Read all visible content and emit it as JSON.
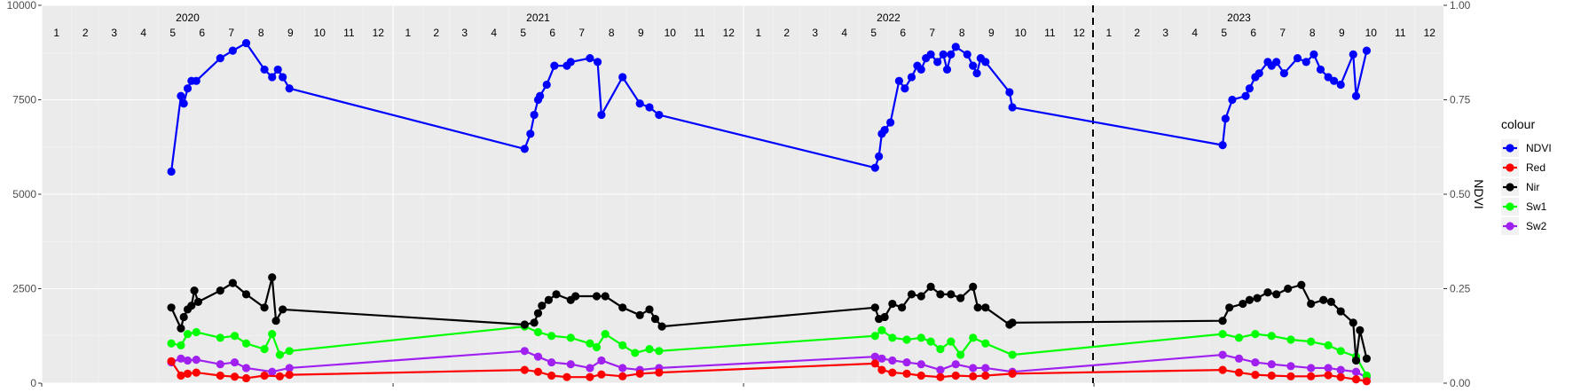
{
  "chart_data": {
    "type": "line",
    "x_axis": {
      "type": "date",
      "range": [
        "2020-01-01",
        "2023-12-31"
      ],
      "year_labels": [
        {
          "date": "2020-06-01",
          "label": "2020"
        },
        {
          "date": "2021-06-01",
          "label": "2021"
        },
        {
          "date": "2022-06-01",
          "label": "2022"
        },
        {
          "date": "2023-06-01",
          "label": "2023"
        }
      ],
      "month_labels": [
        "1",
        "2",
        "3",
        "4",
        "5",
        "6",
        "7",
        "8",
        "9",
        "10",
        "11",
        "12"
      ]
    },
    "y_left": {
      "range": [
        0,
        10000
      ],
      "ticks": [
        0,
        2500,
        5000,
        7500,
        10000
      ],
      "tick_labels": [
        "0",
        "2500",
        "5000",
        "7500",
        "10000"
      ]
    },
    "y_right": {
      "label": "NDVI",
      "range": [
        0,
        1
      ],
      "ticks": [
        0,
        0.25,
        0.5,
        0.75,
        1
      ],
      "tick_labels": [
        "0.00",
        "0.25",
        "0.50",
        "0.75",
        "1.00"
      ]
    },
    "vline": {
      "date": "2022-12-31",
      "style": "dashed",
      "color": "#000000"
    },
    "grid": true,
    "legend": {
      "title": "colour",
      "position": "right"
    },
    "series": [
      {
        "name": "NDVI",
        "color": "#0000ff",
        "axis": "right",
        "points": [
          [
            "2020-05-15",
            0.56
          ],
          [
            "2020-05-25",
            0.76
          ],
          [
            "2020-05-28",
            0.74
          ],
          [
            "2020-06-01",
            0.78
          ],
          [
            "2020-06-05",
            0.8
          ],
          [
            "2020-06-10",
            0.8
          ],
          [
            "2020-07-05",
            0.86
          ],
          [
            "2020-07-18",
            0.88
          ],
          [
            "2020-08-01",
            0.9
          ],
          [
            "2020-08-20",
            0.83
          ],
          [
            "2020-08-28",
            0.81
          ],
          [
            "2020-09-03",
            0.83
          ],
          [
            "2020-09-08",
            0.81
          ],
          [
            "2020-09-15",
            0.78
          ],
          [
            "2021-05-18",
            0.62
          ],
          [
            "2021-05-24",
            0.66
          ],
          [
            "2021-05-28",
            0.71
          ],
          [
            "2021-06-01",
            0.75
          ],
          [
            "2021-06-03",
            0.76
          ],
          [
            "2021-06-10",
            0.79
          ],
          [
            "2021-06-18",
            0.84
          ],
          [
            "2021-07-01",
            0.84
          ],
          [
            "2021-07-05",
            0.85
          ],
          [
            "2021-07-25",
            0.86
          ],
          [
            "2021-08-02",
            0.85
          ],
          [
            "2021-08-06",
            0.71
          ],
          [
            "2021-08-28",
            0.81
          ],
          [
            "2021-09-15",
            0.74
          ],
          [
            "2021-09-25",
            0.73
          ],
          [
            "2021-10-05",
            0.71
          ],
          [
            "2022-05-18",
            0.57
          ],
          [
            "2022-05-22",
            0.6
          ],
          [
            "2022-05-25",
            0.66
          ],
          [
            "2022-05-28",
            0.67
          ],
          [
            "2022-06-03",
            0.69
          ],
          [
            "2022-06-12",
            0.8
          ],
          [
            "2022-06-18",
            0.78
          ],
          [
            "2022-06-25",
            0.81
          ],
          [
            "2022-07-01",
            0.84
          ],
          [
            "2022-07-05",
            0.83
          ],
          [
            "2022-07-10",
            0.86
          ],
          [
            "2022-07-15",
            0.87
          ],
          [
            "2022-07-22",
            0.85
          ],
          [
            "2022-07-28",
            0.87
          ],
          [
            "2022-08-01",
            0.83
          ],
          [
            "2022-08-05",
            0.87
          ],
          [
            "2022-08-10",
            0.89
          ],
          [
            "2022-08-22",
            0.87
          ],
          [
            "2022-08-28",
            0.84
          ],
          [
            "2022-09-01",
            0.82
          ],
          [
            "2022-09-05",
            0.86
          ],
          [
            "2022-09-10",
            0.85
          ],
          [
            "2022-10-05",
            0.77
          ],
          [
            "2022-10-08",
            0.73
          ],
          [
            "2023-05-15",
            0.63
          ],
          [
            "2023-05-18",
            0.7
          ],
          [
            "2023-05-25",
            0.75
          ],
          [
            "2023-06-08",
            0.76
          ],
          [
            "2023-06-12",
            0.78
          ],
          [
            "2023-06-18",
            0.81
          ],
          [
            "2023-06-22",
            0.82
          ],
          [
            "2023-07-01",
            0.85
          ],
          [
            "2023-07-05",
            0.84
          ],
          [
            "2023-07-10",
            0.85
          ],
          [
            "2023-07-18",
            0.82
          ],
          [
            "2023-08-01",
            0.86
          ],
          [
            "2023-08-10",
            0.85
          ],
          [
            "2023-08-18",
            0.87
          ],
          [
            "2023-08-25",
            0.83
          ],
          [
            "2023-09-02",
            0.81
          ],
          [
            "2023-09-08",
            0.8
          ],
          [
            "2023-09-15",
            0.79
          ],
          [
            "2023-09-28",
            0.87
          ],
          [
            "2023-10-01",
            0.76
          ],
          [
            "2023-10-12",
            0.88
          ]
        ]
      },
      {
        "name": "Red",
        "color": "#ff0000",
        "axis": "left",
        "points": [
          [
            "2020-05-15",
            580
          ],
          [
            "2020-05-25",
            200
          ],
          [
            "2020-06-01",
            250
          ],
          [
            "2020-06-10",
            280
          ],
          [
            "2020-07-05",
            200
          ],
          [
            "2020-07-20",
            170
          ],
          [
            "2020-08-01",
            130
          ],
          [
            "2020-08-20",
            200
          ],
          [
            "2020-09-05",
            180
          ],
          [
            "2020-09-15",
            220
          ],
          [
            "2021-05-18",
            350
          ],
          [
            "2021-06-01",
            300
          ],
          [
            "2021-06-15",
            200
          ],
          [
            "2021-07-01",
            160
          ],
          [
            "2021-07-25",
            160
          ],
          [
            "2021-08-06",
            230
          ],
          [
            "2021-08-28",
            180
          ],
          [
            "2021-09-15",
            250
          ],
          [
            "2021-10-05",
            280
          ],
          [
            "2022-05-18",
            520
          ],
          [
            "2022-05-25",
            350
          ],
          [
            "2022-06-05",
            280
          ],
          [
            "2022-06-20",
            250
          ],
          [
            "2022-07-05",
            200
          ],
          [
            "2022-07-25",
            160
          ],
          [
            "2022-08-10",
            200
          ],
          [
            "2022-08-28",
            180
          ],
          [
            "2022-09-10",
            200
          ],
          [
            "2022-10-08",
            250
          ],
          [
            "2023-05-15",
            350
          ],
          [
            "2023-06-01",
            280
          ],
          [
            "2023-06-18",
            220
          ],
          [
            "2023-07-05",
            200
          ],
          [
            "2023-07-25",
            180
          ],
          [
            "2023-08-15",
            180
          ],
          [
            "2023-09-02",
            210
          ],
          [
            "2023-09-15",
            160
          ],
          [
            "2023-10-01",
            100
          ],
          [
            "2023-10-12",
            50
          ]
        ]
      },
      {
        "name": "Nir",
        "color": "#000000",
        "axis": "left",
        "points": [
          [
            "2020-05-15",
            2000
          ],
          [
            "2020-05-25",
            1450
          ],
          [
            "2020-05-28",
            1750
          ],
          [
            "2020-06-01",
            1950
          ],
          [
            "2020-06-05",
            2050
          ],
          [
            "2020-06-08",
            2450
          ],
          [
            "2020-06-12",
            2150
          ],
          [
            "2020-07-05",
            2450
          ],
          [
            "2020-07-18",
            2650
          ],
          [
            "2020-08-01",
            2350
          ],
          [
            "2020-08-20",
            2000
          ],
          [
            "2020-08-28",
            2800
          ],
          [
            "2020-09-01",
            1650
          ],
          [
            "2020-09-08",
            1950
          ],
          [
            "2021-05-18",
            1550
          ],
          [
            "2021-05-28",
            1600
          ],
          [
            "2021-06-01",
            1850
          ],
          [
            "2021-06-05",
            2050
          ],
          [
            "2021-06-12",
            2200
          ],
          [
            "2021-06-20",
            2350
          ],
          [
            "2021-07-05",
            2200
          ],
          [
            "2021-07-10",
            2300
          ],
          [
            "2021-08-01",
            2300
          ],
          [
            "2021-08-10",
            2300
          ],
          [
            "2021-08-28",
            2000
          ],
          [
            "2021-09-15",
            1800
          ],
          [
            "2021-09-25",
            1950
          ],
          [
            "2021-10-01",
            1700
          ],
          [
            "2021-10-08",
            1500
          ],
          [
            "2022-05-18",
            2000
          ],
          [
            "2022-05-22",
            1700
          ],
          [
            "2022-05-28",
            1750
          ],
          [
            "2022-06-05",
            2100
          ],
          [
            "2022-06-15",
            2000
          ],
          [
            "2022-06-25",
            2350
          ],
          [
            "2022-07-05",
            2300
          ],
          [
            "2022-07-15",
            2550
          ],
          [
            "2022-07-25",
            2350
          ],
          [
            "2022-08-05",
            2350
          ],
          [
            "2022-08-15",
            2250
          ],
          [
            "2022-08-28",
            2550
          ],
          [
            "2022-09-02",
            2000
          ],
          [
            "2022-09-10",
            2000
          ],
          [
            "2022-10-05",
            1550
          ],
          [
            "2022-10-08",
            1600
          ],
          [
            "2023-05-15",
            1650
          ],
          [
            "2023-05-22",
            2000
          ],
          [
            "2023-06-05",
            2100
          ],
          [
            "2023-06-12",
            2200
          ],
          [
            "2023-06-20",
            2250
          ],
          [
            "2023-07-01",
            2400
          ],
          [
            "2023-07-10",
            2350
          ],
          [
            "2023-07-22",
            2500
          ],
          [
            "2023-08-05",
            2600
          ],
          [
            "2023-08-15",
            2100
          ],
          [
            "2023-08-28",
            2200
          ],
          [
            "2023-09-05",
            2150
          ],
          [
            "2023-09-15",
            1900
          ],
          [
            "2023-09-28",
            1600
          ],
          [
            "2023-10-01",
            600
          ],
          [
            "2023-10-05",
            1400
          ],
          [
            "2023-10-12",
            650
          ]
        ]
      },
      {
        "name": "Sw1",
        "color": "#00ff00",
        "axis": "left",
        "points": [
          [
            "2020-05-15",
            1050
          ],
          [
            "2020-05-25",
            1000
          ],
          [
            "2020-06-01",
            1300
          ],
          [
            "2020-06-10",
            1350
          ],
          [
            "2020-07-05",
            1200
          ],
          [
            "2020-07-20",
            1250
          ],
          [
            "2020-08-01",
            1050
          ],
          [
            "2020-08-20",
            900
          ],
          [
            "2020-08-28",
            1300
          ],
          [
            "2020-09-05",
            750
          ],
          [
            "2020-09-15",
            850
          ],
          [
            "2021-05-18",
            1500
          ],
          [
            "2021-06-01",
            1350
          ],
          [
            "2021-06-15",
            1250
          ],
          [
            "2021-07-05",
            1200
          ],
          [
            "2021-07-25",
            1050
          ],
          [
            "2021-08-01",
            950
          ],
          [
            "2021-08-10",
            1300
          ],
          [
            "2021-08-28",
            1000
          ],
          [
            "2021-09-10",
            800
          ],
          [
            "2021-09-25",
            900
          ],
          [
            "2021-10-05",
            850
          ],
          [
            "2022-05-18",
            1250
          ],
          [
            "2022-05-25",
            1400
          ],
          [
            "2022-06-05",
            1200
          ],
          [
            "2022-06-20",
            1150
          ],
          [
            "2022-07-05",
            1200
          ],
          [
            "2022-07-15",
            1100
          ],
          [
            "2022-07-25",
            900
          ],
          [
            "2022-08-05",
            1100
          ],
          [
            "2022-08-15",
            750
          ],
          [
            "2022-08-28",
            1200
          ],
          [
            "2022-09-10",
            1050
          ],
          [
            "2022-10-08",
            750
          ],
          [
            "2023-05-15",
            1300
          ],
          [
            "2023-06-01",
            1200
          ],
          [
            "2023-06-18",
            1300
          ],
          [
            "2023-07-05",
            1250
          ],
          [
            "2023-07-25",
            1150
          ],
          [
            "2023-08-15",
            1100
          ],
          [
            "2023-09-02",
            1000
          ],
          [
            "2023-09-15",
            850
          ],
          [
            "2023-10-01",
            700
          ],
          [
            "2023-10-12",
            200
          ]
        ]
      },
      {
        "name": "Sw2",
        "color": "#a020f0",
        "axis": "left",
        "points": [
          [
            "2020-05-15",
            550
          ],
          [
            "2020-05-25",
            650
          ],
          [
            "2020-06-01",
            600
          ],
          [
            "2020-06-10",
            620
          ],
          [
            "2020-07-05",
            500
          ],
          [
            "2020-07-20",
            550
          ],
          [
            "2020-08-01",
            400
          ],
          [
            "2020-08-28",
            300
          ],
          [
            "2020-09-15",
            400
          ],
          [
            "2021-05-18",
            850
          ],
          [
            "2021-06-01",
            700
          ],
          [
            "2021-06-15",
            550
          ],
          [
            "2021-07-05",
            500
          ],
          [
            "2021-07-25",
            400
          ],
          [
            "2021-08-06",
            600
          ],
          [
            "2021-08-28",
            400
          ],
          [
            "2021-09-15",
            350
          ],
          [
            "2021-10-05",
            400
          ],
          [
            "2022-05-18",
            700
          ],
          [
            "2022-05-25",
            650
          ],
          [
            "2022-06-05",
            600
          ],
          [
            "2022-06-20",
            550
          ],
          [
            "2022-07-05",
            500
          ],
          [
            "2022-07-25",
            350
          ],
          [
            "2022-08-10",
            500
          ],
          [
            "2022-08-28",
            400
          ],
          [
            "2022-09-10",
            400
          ],
          [
            "2022-10-08",
            300
          ],
          [
            "2023-05-15",
            750
          ],
          [
            "2023-06-01",
            650
          ],
          [
            "2023-06-18",
            550
          ],
          [
            "2023-07-05",
            500
          ],
          [
            "2023-07-25",
            450
          ],
          [
            "2023-08-15",
            400
          ],
          [
            "2023-09-02",
            400
          ],
          [
            "2023-09-15",
            350
          ],
          [
            "2023-10-01",
            300
          ],
          [
            "2023-10-12",
            150
          ]
        ]
      }
    ]
  }
}
